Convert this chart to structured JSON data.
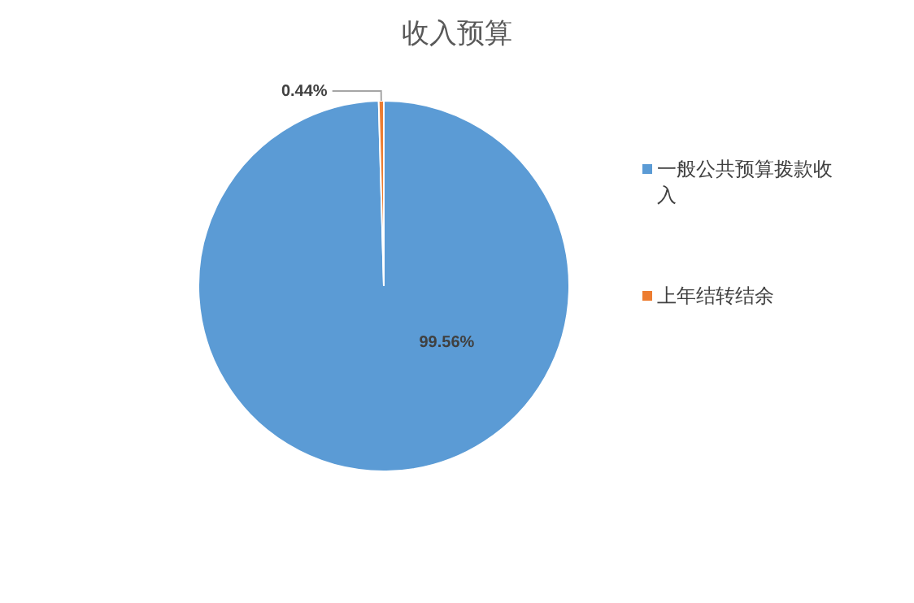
{
  "chart_data": {
    "type": "pie",
    "title": "收入预算",
    "categories": [
      "一般公共预算拨款收入",
      "上年结转结余"
    ],
    "values": [
      99.56,
      0.44
    ],
    "colors": [
      "#5b9bd5",
      "#ed7d31"
    ],
    "value_labels": [
      "99.56%",
      "0.44%"
    ],
    "legend": "right"
  }
}
